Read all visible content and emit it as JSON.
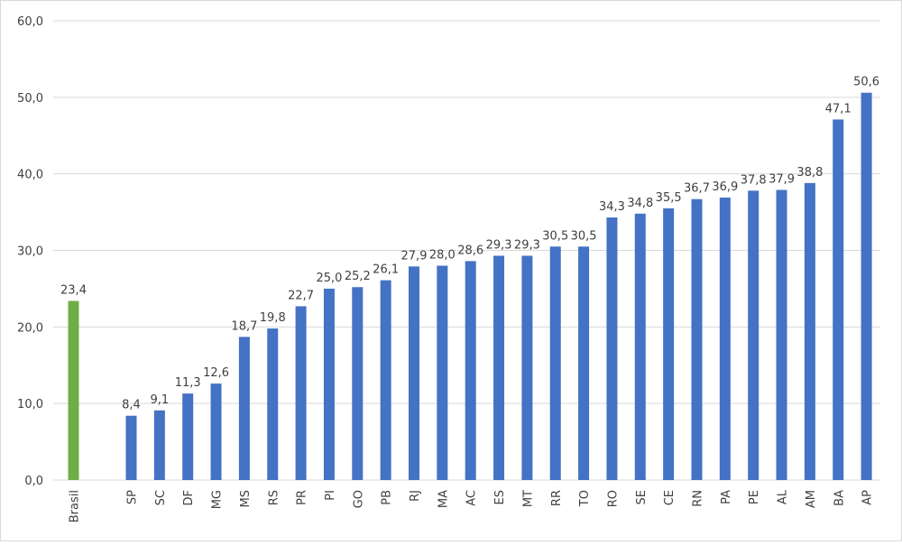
{
  "chart_data": {
    "type": "bar",
    "title": "",
    "xlabel": "",
    "ylabel": "",
    "ylim": [
      0,
      60
    ],
    "yticks": [
      "0,0",
      "10,0",
      "20,0",
      "30,0",
      "40,0",
      "50,0",
      "60,0"
    ],
    "grid": "horizontal",
    "legend": "none",
    "colors": {
      "bar": "#4472c4",
      "highlight": "#70ad47",
      "grid": "#d9d9d9"
    },
    "categories": [
      "Brasil",
      "SP",
      "SC",
      "DF",
      "MG",
      "MS",
      "RS",
      "PR",
      "PI",
      "GO",
      "PB",
      "RJ",
      "MA",
      "AC",
      "ES",
      "MT",
      "RR",
      "TO",
      "RO",
      "SE",
      "CE",
      "RN",
      "PA",
      "PE",
      "AL",
      "AM",
      "BA",
      "AP"
    ],
    "values": [
      23.4,
      8.4,
      9.1,
      11.3,
      12.6,
      18.7,
      19.8,
      22.7,
      25.0,
      25.2,
      26.1,
      27.9,
      28.0,
      28.6,
      29.3,
      29.3,
      30.5,
      30.5,
      34.3,
      34.8,
      35.5,
      36.7,
      36.9,
      37.8,
      37.9,
      38.8,
      47.1,
      50.6
    ],
    "data_labels": [
      "23,4",
      "8,4",
      "9,1",
      "11,3",
      "12,6",
      "18,7",
      "19,8",
      "22,7",
      "25,0",
      "25,2",
      "26,1",
      "27,9",
      "28,0",
      "28,6",
      "29,3",
      "29,3",
      "30,5",
      "30,5",
      "34,3",
      "34,8",
      "35,5",
      "36,7",
      "36,9",
      "37,8",
      "37,9",
      "38,8",
      "47,1",
      "50,6"
    ],
    "highlight_category": "Brasil"
  }
}
